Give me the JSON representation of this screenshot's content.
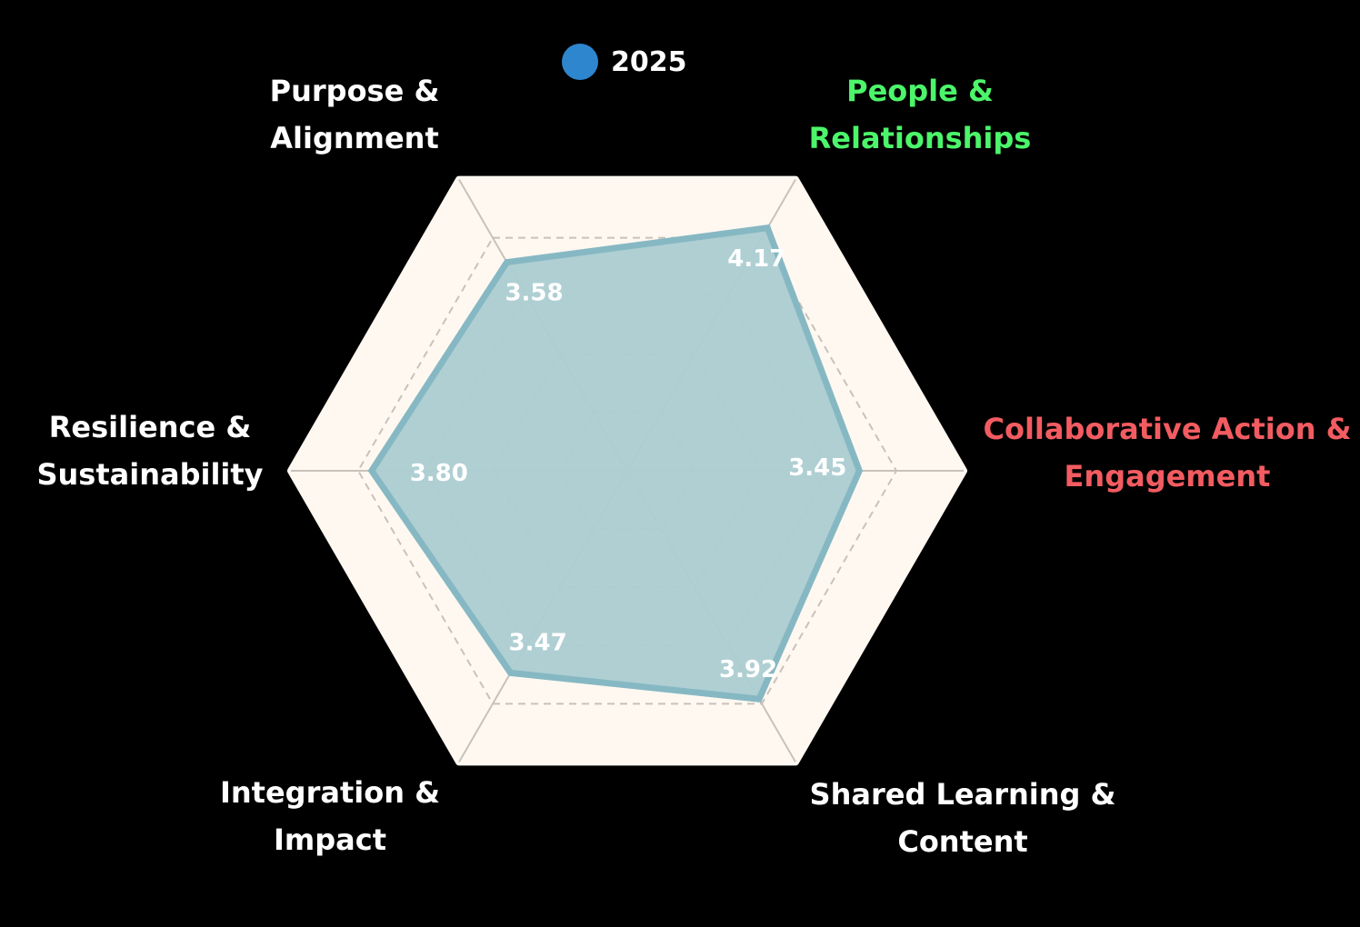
{
  "legend": {
    "label": "2025",
    "color": "#2e86cf"
  },
  "colors": {
    "background": "#000000",
    "plot_background": "#fff8f1",
    "grid": "#c8c2bb",
    "series_fill": "#accdd1",
    "series_stroke": "#86b8c3",
    "value_label": "#ffffff"
  },
  "axes": [
    {
      "line1": "Purpose &",
      "line2": "Alignment",
      "color": "#ffffff"
    },
    {
      "line1": "People &",
      "line2": "Relationships",
      "color": "#4cf56a"
    },
    {
      "line1": "Collaborative Action &",
      "line2": "Engagement",
      "color": "#f25c61"
    },
    {
      "line1": "Shared Learning &",
      "line2": "Content",
      "color": "#ffffff"
    },
    {
      "line1": "Integration &",
      "line2": "Impact",
      "color": "#ffffff"
    },
    {
      "line1": "Resilience &",
      "line2": "Sustainability",
      "color": "#ffffff"
    }
  ],
  "values_text": [
    "3.58",
    "4.17",
    "3.45",
    "3.92",
    "3.47",
    "3.80"
  ],
  "chart_data": {
    "type": "radar",
    "title": "",
    "categories": [
      "Purpose & Alignment",
      "People & Relationships",
      "Collaborative Action & Engagement",
      "Shared Learning & Content",
      "Integration & Impact",
      "Resilience & Sustainability"
    ],
    "series": [
      {
        "name": "2025",
        "values": [
          3.58,
          4.17,
          3.45,
          3.92,
          3.47,
          3.8
        ]
      }
    ],
    "range": [
      0,
      5
    ],
    "grid_levels": [
      1,
      2,
      3,
      4,
      5
    ],
    "grid": true,
    "grid_shape": "hexagon",
    "legend_position": "top",
    "data_labels": true
  }
}
